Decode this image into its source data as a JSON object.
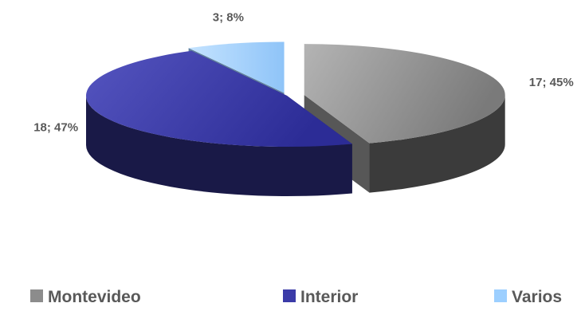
{
  "chart_data": {
    "type": "pie",
    "title": "",
    "categories": [
      "Montevideo",
      "Interior",
      "Varios"
    ],
    "values": [
      17,
      18,
      3
    ],
    "percents": [
      "45%",
      "47%",
      "8%"
    ],
    "data_labels": [
      "17; 45%",
      "18; 47%",
      "3; 8%"
    ],
    "colors": [
      "#8C8C8C",
      "#3B3BA8",
      "#9CCFFF"
    ],
    "legend_position": "bottom"
  }
}
